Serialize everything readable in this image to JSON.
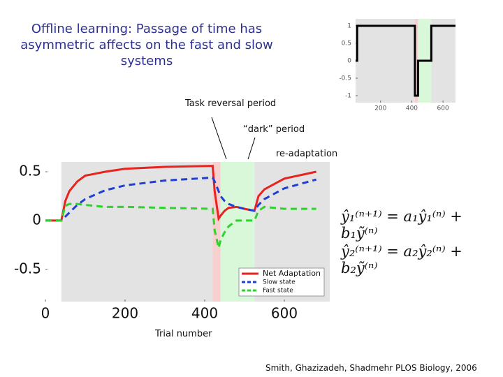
{
  "title": "Offline learning: Passage of time has asymmetric affects on the fast and slow systems",
  "annotations": [
    "Task reversal period",
    "“dark” period",
    "re-adaptation"
  ],
  "equations": [
    "ŷ₁⁽ⁿ⁺¹⁾ = a₁ŷ₁⁽ⁿ⁾ + b₁ỹ⁽ⁿ⁾",
    "ŷ₂⁽ⁿ⁺¹⁾ = a₂ŷ₂⁽ⁿ⁾ + b₂ỹ⁽ⁿ⁾"
  ],
  "citation": "Smith, Ghazizadeh, Shadmehr PLOS Biology, 2006",
  "chart_data": [
    {
      "type": "line",
      "x": [
        40,
        50,
        50,
        420,
        420,
        440,
        440,
        525,
        525,
        680
      ],
      "series": [
        {
          "color": "#000000",
          "values": [
            0,
            0,
            1,
            1,
            -1,
            -1,
            0,
            0,
            1,
            1
          ]
        }
      ],
      "bands": [
        {
          "xlim": [
            40,
            420
          ],
          "color": "#e3e3e3"
        },
        {
          "xlim": [
            420,
            440
          ],
          "color": "#f7cfcf"
        },
        {
          "xlim": [
            440,
            525
          ],
          "color": "#d9f7d9"
        },
        {
          "xlim": [
            525,
            680
          ],
          "color": "#e3e3e3"
        }
      ],
      "xlim": [
        40,
        680
      ],
      "ylim": [
        -1.2,
        1.2
      ],
      "xticks": [
        200,
        400,
        600
      ],
      "yticks": [
        1,
        0.5,
        0,
        -0.5,
        -1
      ]
    },
    {
      "type": "line",
      "x_label": "Trial number",
      "x": [
        0,
        40,
        50,
        60,
        80,
        100,
        150,
        200,
        300,
        420,
        425,
        435,
        440,
        450,
        460,
        480,
        500,
        525,
        535,
        550,
        600,
        680
      ],
      "series": [
        {
          "name": "Net Adaptation",
          "color": "#e8231f",
          "dash": false,
          "values": [
            0,
            0,
            0.2,
            0.3,
            0.4,
            0.46,
            0.5,
            0.53,
            0.55,
            0.56,
            0.3,
            0.02,
            0.05,
            0.1,
            0.13,
            0.14,
            0.12,
            0.1,
            0.25,
            0.32,
            0.43,
            0.5
          ]
        },
        {
          "name": "Slow state",
          "color": "#1f3fd6",
          "dash": true,
          "values": [
            0,
            0,
            0.04,
            0.08,
            0.16,
            0.22,
            0.31,
            0.36,
            0.41,
            0.44,
            0.4,
            0.3,
            0.25,
            0.2,
            0.17,
            0.14,
            0.12,
            0.1,
            0.16,
            0.22,
            0.33,
            0.42
          ]
        },
        {
          "name": "Fast state",
          "color": "#2ed12e",
          "dash": true,
          "values": [
            0,
            0,
            0.15,
            0.17,
            0.17,
            0.16,
            0.14,
            0.14,
            0.13,
            0.12,
            -0.1,
            -0.28,
            -0.2,
            -0.12,
            -0.06,
            0,
            0,
            0,
            0.1,
            0.14,
            0.12,
            0.12
          ]
        }
      ],
      "bands": [
        {
          "xlim": [
            40,
            420
          ],
          "color": "#e3e3e3"
        },
        {
          "xlim": [
            420,
            440
          ],
          "color": "#f7cfcf"
        },
        {
          "xlim": [
            440,
            525
          ],
          "color": "#d9f7d9"
        },
        {
          "xlim": [
            525,
            714
          ],
          "color": "#e3e3e3"
        }
      ],
      "xlim": [
        0,
        714
      ],
      "ylim": [
        -0.83,
        0.6
      ],
      "xticks": [
        0,
        200,
        400,
        600
      ],
      "yticks": [
        0.5,
        0,
        -0.5
      ],
      "legend": "lower right"
    }
  ]
}
